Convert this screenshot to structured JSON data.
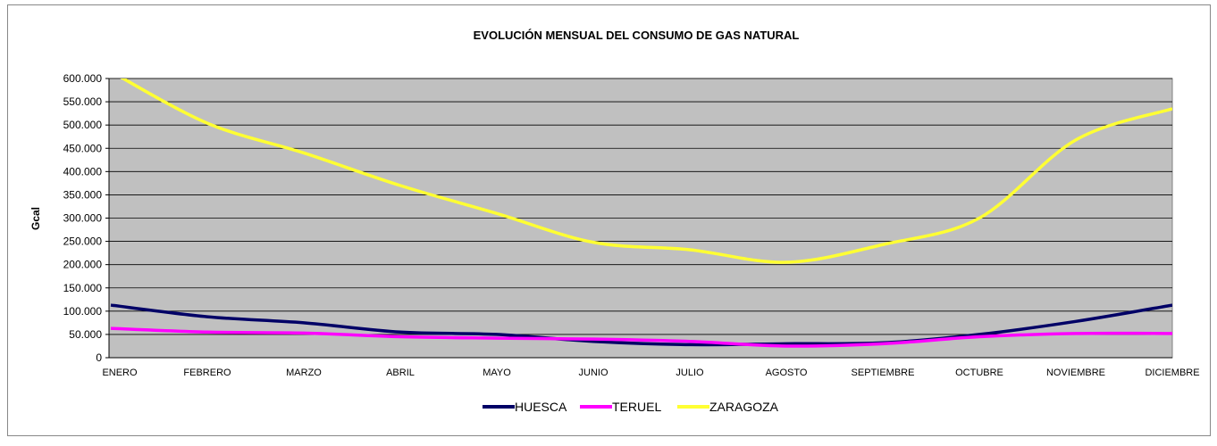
{
  "chart_data": {
    "type": "line",
    "title": "EVOLUCIÓN MENSUAL DEL CONSUMO DE GAS NATURAL",
    "y_label": "Gcal",
    "categories": [
      "ENERO",
      "FEBRERO",
      "MARZO",
      "ABRIL",
      "MAYO",
      "JUNIO",
      "JULIO",
      "AGOSTO",
      "SEPTIEMBRE",
      "OCTUBRE",
      "NOVIEMBRE",
      "DICIEMBRE"
    ],
    "series": [
      {
        "name": "HUESCA",
        "color": "#000066",
        "values": [
          113000,
          88000,
          75000,
          55000,
          50000,
          35000,
          28000,
          30000,
          32000,
          50000,
          78000,
          113000
        ]
      },
      {
        "name": "TERUEL",
        "color": "#ff00ff",
        "values": [
          63000,
          55000,
          53000,
          45000,
          42000,
          40000,
          35000,
          25000,
          30000,
          45000,
          52000,
          52000
        ]
      },
      {
        "name": "ZARAGOZA",
        "color": "#ffff33",
        "values": [
          615000,
          504000,
          440000,
          370000,
          310000,
          248000,
          232000,
          205000,
          243000,
          300000,
          468000,
          535000
        ]
      }
    ],
    "ylim": [
      0,
      600000
    ],
    "yticks": [
      0,
      {
        "value": 50000,
        "label": "50.000"
      },
      {
        "value": 100000,
        "label": "100.000"
      },
      {
        "value": 150000,
        "label": "150.000"
      },
      {
        "value": 200000,
        "label": "200.000"
      },
      {
        "value": 250000,
        "label": "250.000"
      },
      {
        "value": 300000,
        "label": "300.000"
      },
      {
        "value": 350000,
        "label": "350.000"
      },
      {
        "value": 400000,
        "label": "400.000"
      },
      {
        "value": 450000,
        "label": "450.000"
      },
      {
        "value": 500000,
        "label": "500.000"
      },
      {
        "value": 550000,
        "label": "550.000"
      },
      {
        "value": 600000,
        "label": "600.000"
      }
    ],
    "grid": true,
    "legend": "bottom",
    "plot_background": "#c0c0c0"
  }
}
